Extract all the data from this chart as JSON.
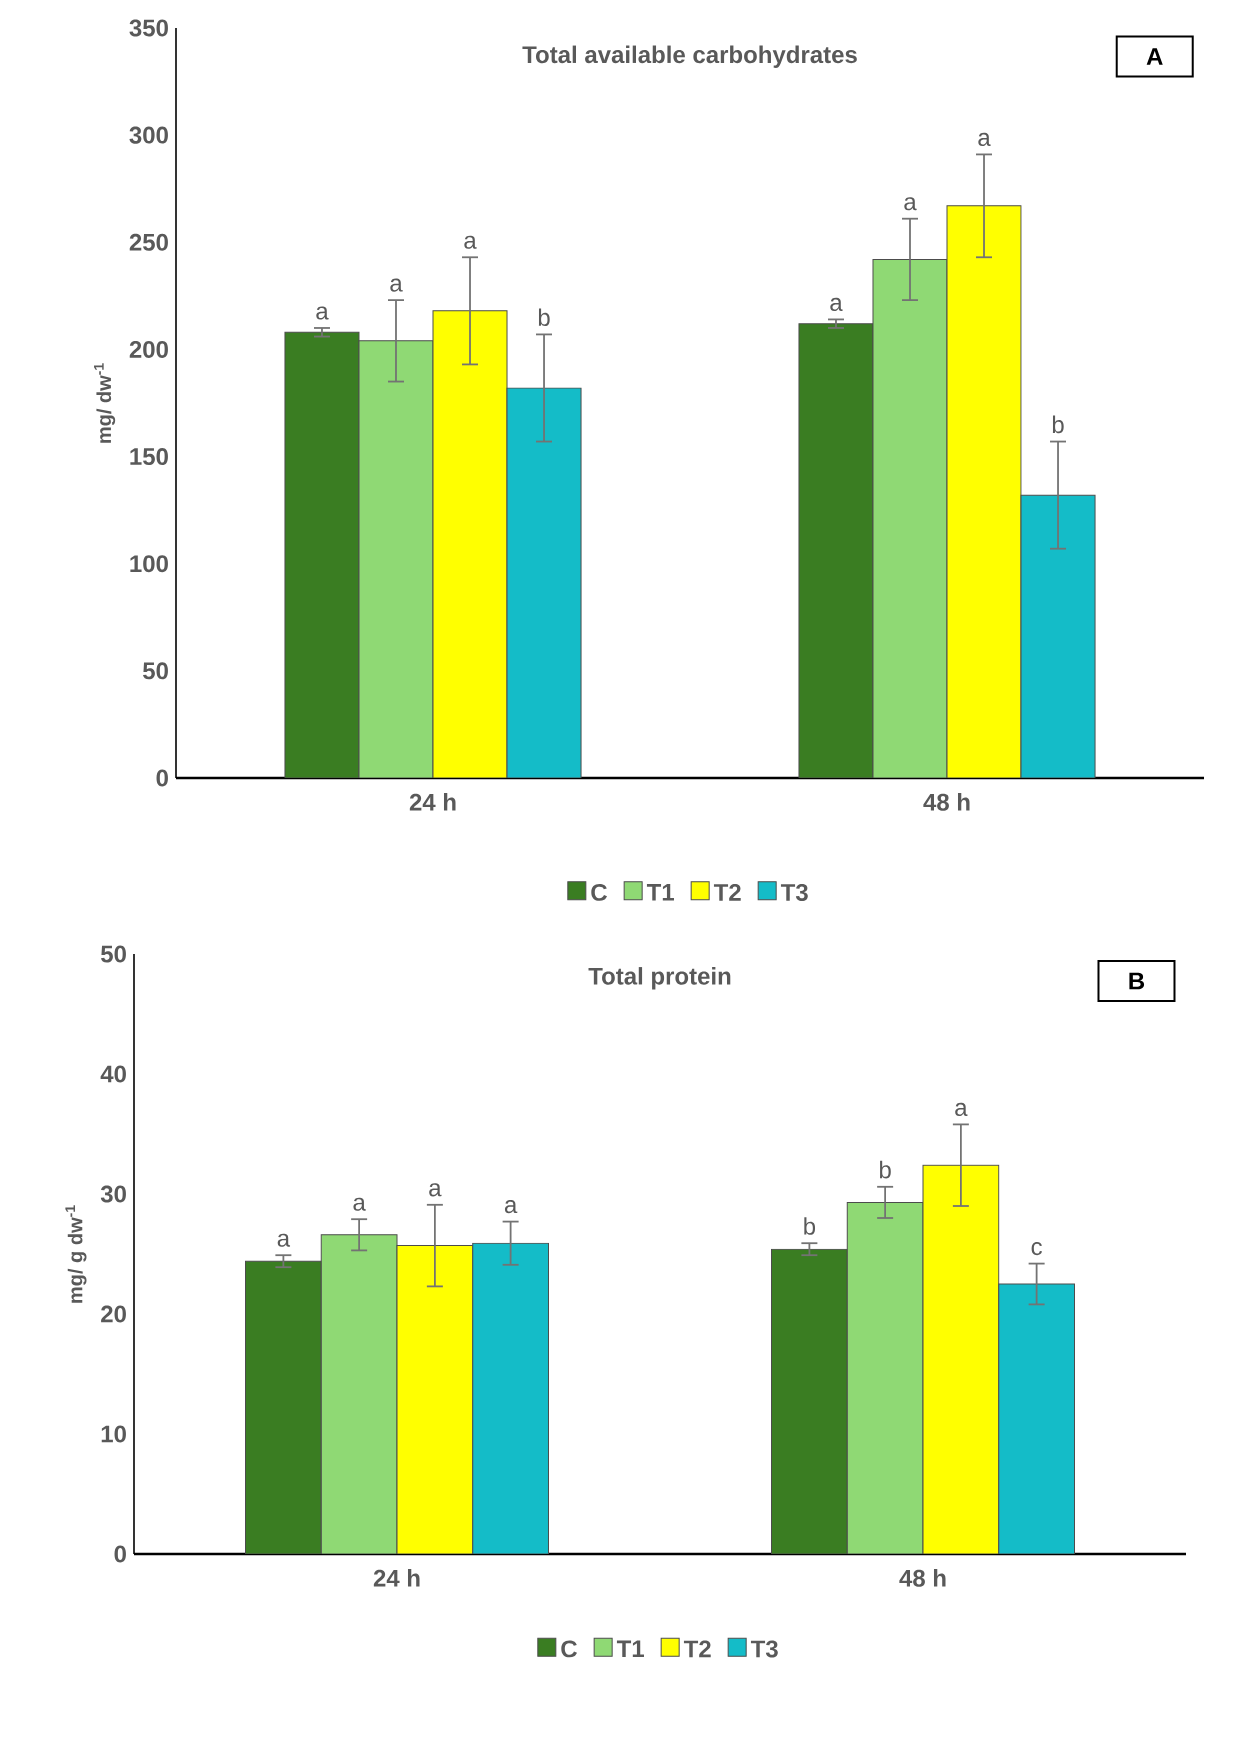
{
  "chart_data": [
    {
      "type": "bar",
      "title": "Total available carbohydrates",
      "ylabel": "mg/ dw$^{-1}$",
      "categories": [
        "24 h",
        "48 h"
      ],
      "series": [
        {
          "name": "C",
          "color": "#3a7d22",
          "values": [
            208,
            212
          ],
          "errors": [
            2,
            2
          ]
        },
        {
          "name": "T1",
          "color": "#8fd974",
          "values": [
            204,
            242
          ],
          "errors": [
            19,
            19
          ]
        },
        {
          "name": "T2",
          "color": "#ffff00",
          "values": [
            218,
            267
          ],
          "errors": [
            25,
            24
          ]
        },
        {
          "name": "T3",
          "color": "#14bcc8",
          "values": [
            182,
            132
          ],
          "errors": [
            25,
            25
          ]
        }
      ],
      "ylim": [
        0,
        350
      ],
      "yticks": [
        0,
        50,
        100,
        150,
        200,
        250,
        300,
        350
      ],
      "grid": false,
      "legend": "bottom",
      "annotations": [
        "a",
        "a",
        "a",
        "b",
        "a",
        "a",
        "a",
        "b",
        "A"
      ]
    },
    {
      "type": "bar",
      "title": "Total protein",
      "ylabel": "mg/ g dw$^{-1}$",
      "categories": [
        "24 h",
        "48 h"
      ],
      "series": [
        {
          "name": "C",
          "color": "#3a7d22",
          "values": [
            24.4,
            25.4
          ],
          "errors": [
            0.5,
            0.5
          ]
        },
        {
          "name": "T1",
          "color": "#8fd974",
          "values": [
            26.6,
            29.3
          ],
          "errors": [
            1.3,
            1.3
          ]
        },
        {
          "name": "T2",
          "color": "#ffff00",
          "values": [
            25.7,
            32.4
          ],
          "errors": [
            3.4,
            3.4
          ]
        },
        {
          "name": "T3",
          "color": "#14bcc8",
          "values": [
            25.9,
            22.5
          ],
          "errors": [
            1.8,
            1.7
          ]
        }
      ],
      "ylim": [
        0,
        50
      ],
      "yticks": [
        0,
        10,
        20,
        30,
        40,
        50
      ],
      "grid": false,
      "legend": "bottom",
      "annotations": [
        "a",
        "a",
        "a",
        "a",
        "b",
        "b",
        "a",
        "c",
        "B"
      ]
    }
  ]
}
